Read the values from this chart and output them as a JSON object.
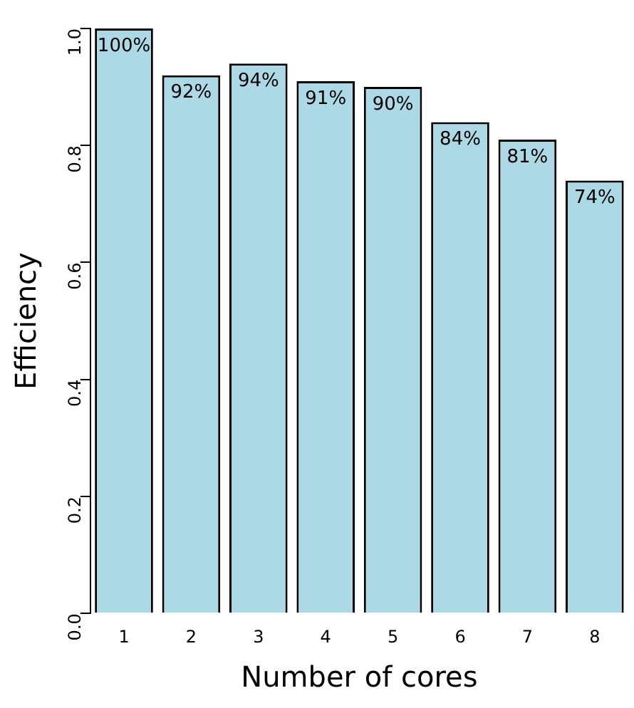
{
  "chart_data": {
    "type": "bar",
    "xlabel": "Number of cores",
    "ylabel": "Efficiency",
    "categories": [
      "1",
      "2",
      "3",
      "4",
      "5",
      "6",
      "7",
      "8"
    ],
    "values": [
      1.0,
      0.92,
      0.94,
      0.91,
      0.9,
      0.84,
      0.81,
      0.74
    ],
    "value_labels": [
      "100%",
      "92%",
      "94%",
      "91%",
      "90%",
      "84%",
      "81%",
      "74%"
    ],
    "color": "#add8e6",
    "ylim": [
      0,
      1
    ],
    "yticks": [
      {
        "value": 0,
        "label": "0.0"
      },
      {
        "value": 0.2,
        "label": "0.2"
      },
      {
        "value": 0.4,
        "label": "0.4"
      },
      {
        "value": 0.6,
        "label": "0.6"
      },
      {
        "value": 0.8,
        "label": "0.8"
      },
      {
        "value": 1,
        "label": "1.0"
      }
    ],
    "grid": false,
    "legend": false
  }
}
